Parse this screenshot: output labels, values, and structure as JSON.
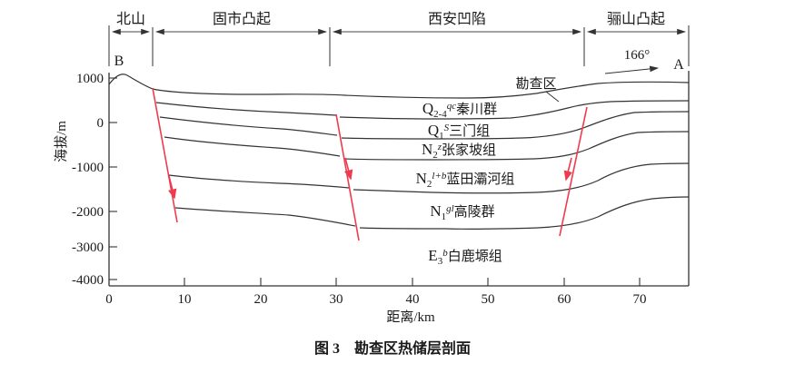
{
  "figure": {
    "caption": "图 3　勘查区热储层剖面",
    "section_start_label": "B",
    "section_end_label": "A",
    "azimuth_label": "166°",
    "survey_area_label": "勘查区"
  },
  "tectonic_units": {
    "items": [
      {
        "label": "北山",
        "from_km": 0,
        "to_km": 6
      },
      {
        "label": "固市凸起",
        "from_km": 6,
        "to_km": 29
      },
      {
        "label": "西安凹陷",
        "from_km": 29,
        "to_km": 63
      },
      {
        "label": "骊山凸起",
        "from_km": 63,
        "to_km": 76.5
      }
    ]
  },
  "axes": {
    "y": {
      "title": "海拔/m",
      "ticks": [
        "1000",
        "0",
        "-1000",
        "-2000",
        "-3000",
        "-4000"
      ]
    },
    "x": {
      "title": "距离/km",
      "ticks": [
        "0",
        "10",
        "20",
        "30",
        "40",
        "50",
        "60",
        "70"
      ]
    }
  },
  "strata": {
    "layers": [
      {
        "symbol": "Q",
        "subscript": "2-4",
        "superscript": "qc",
        "name": "秦川群"
      },
      {
        "symbol": "Q",
        "subscript": "1",
        "superscript": "S",
        "name": "三门组"
      },
      {
        "symbol": "N",
        "subscript": "2",
        "superscript": "z",
        "name": "张家坡组"
      },
      {
        "symbol": "N",
        "subscript": "2",
        "superscript": "l+b",
        "name": "蓝田灞河组"
      },
      {
        "symbol": "N",
        "subscript": "1",
        "superscript": "gl",
        "name": "高陵群"
      },
      {
        "symbol": "E",
        "subscript": "3",
        "superscript": "b",
        "name": "白鹿塬组"
      }
    ]
  },
  "colors": {
    "fault": "#ef3b4e",
    "strata_line": "#333333",
    "text": "#1a1a1a"
  },
  "chart_data": {
    "type": "geological-cross-section",
    "title": "勘查区热储层剖面",
    "x_axis": {
      "label": "距离/km",
      "range": [
        0,
        76.5
      ],
      "ticks": [
        0,
        10,
        20,
        30,
        40,
        50,
        60,
        70
      ]
    },
    "y_axis": {
      "label": "海拔/m",
      "range": [
        -4000,
        1000
      ],
      "ticks": [
        1000,
        0,
        -1000,
        -2000,
        -3000,
        -4000
      ]
    },
    "section_orientation": "B → A, 166°",
    "tectonic_units": [
      {
        "name": "北山",
        "from_km": 0,
        "to_km": 6
      },
      {
        "name": "固市凸起",
        "from_km": 6,
        "to_km": 29
      },
      {
        "name": "西安凹陷",
        "from_km": 29,
        "to_km": 63
      },
      {
        "name": "骊山凸起",
        "from_km": 63,
        "to_km": 76.5
      }
    ],
    "layers_top_to_bottom": [
      "Q2-4qc 秦川群",
      "Q1S 三门组",
      "N2z 张家坡组",
      "N2l+b 蓝田灞河组",
      "N1gl 高陵群",
      "E3b 白鹿塬组"
    ],
    "surface_elevation_profile_m": {
      "km": [
        0,
        2,
        6,
        10,
        20,
        30,
        40,
        50,
        58,
        65,
        70,
        76.5
      ],
      "elev": [
        900,
        1080,
        730,
        660,
        630,
        620,
        580,
        560,
        600,
        730,
        880,
        900
      ]
    },
    "faults": [
      {
        "at_km": 6,
        "dip_direction": "right",
        "top_elevation_m": 750,
        "bottom_elevation_m": -2250
      },
      {
        "at_km": 30,
        "dip_direction": "right",
        "top_elevation_m": 180,
        "bottom_elevation_m": -2650
      },
      {
        "at_km": 62,
        "dip_direction": "left",
        "top_elevation_m": 350,
        "bottom_elevation_m": -2550
      }
    ]
  }
}
